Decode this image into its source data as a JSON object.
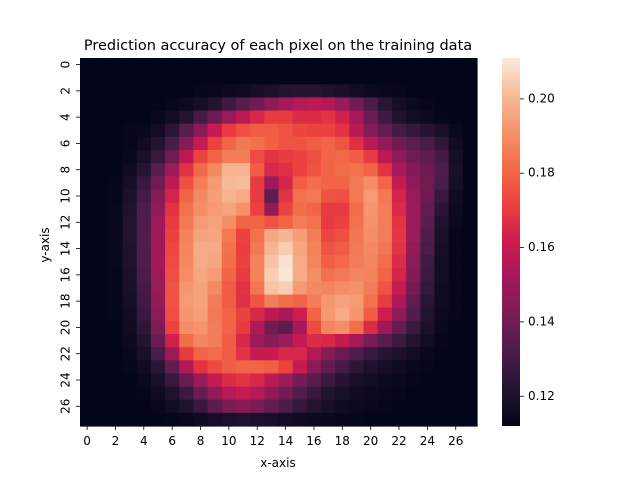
{
  "chart_data": {
    "type": "heatmap",
    "title": "Prediction accuracy of each pixel on the training data",
    "xlabel": "x-axis",
    "ylabel": "y-axis",
    "rows": 28,
    "cols": 28,
    "x_tick_labels": [
      "0",
      "2",
      "4",
      "6",
      "8",
      "10",
      "12",
      "14",
      "16",
      "18",
      "20",
      "22",
      "24",
      "26"
    ],
    "y_tick_labels": [
      "0",
      "2",
      "4",
      "6",
      "8",
      "10",
      "12",
      "14",
      "16",
      "18",
      "20",
      "22",
      "24",
      "26"
    ],
    "colorbar": {
      "vmin": 0.112,
      "vmax": 0.211,
      "tick_values": [
        0.12,
        0.14,
        0.16,
        0.18,
        0.2
      ],
      "tick_labels": [
        "0.12",
        "0.14",
        "0.16",
        "0.18",
        "0.20"
      ]
    },
    "colormap": [
      "#03051a",
      "#221331",
      "#4c1d4b",
      "#781c55",
      "#a3195b",
      "#cb1b4f",
      "#ec3f3f",
      "#f26a47",
      "#f5936a",
      "#f7ba98",
      "#faebdd"
    ],
    "grid": false,
    "legend": "colorbar-right",
    "values": [
      [
        0.112,
        0.112,
        0.112,
        0.112,
        0.112,
        0.112,
        0.112,
        0.112,
        0.112,
        0.112,
        0.112,
        0.112,
        0.112,
        0.112,
        0.112,
        0.112,
        0.112,
        0.112,
        0.112,
        0.112,
        0.112,
        0.112,
        0.112,
        0.112,
        0.112,
        0.112,
        0.112,
        0.112
      ],
      [
        0.112,
        0.112,
        0.112,
        0.112,
        0.112,
        0.112,
        0.112,
        0.112,
        0.112,
        0.112,
        0.112,
        0.112,
        0.112,
        0.112,
        0.112,
        0.112,
        0.112,
        0.112,
        0.112,
        0.112,
        0.112,
        0.112,
        0.112,
        0.112,
        0.112,
        0.112,
        0.112,
        0.112
      ],
      [
        0.112,
        0.112,
        0.112,
        0.112,
        0.112,
        0.112,
        0.112,
        0.112,
        0.113,
        0.114,
        0.115,
        0.116,
        0.118,
        0.12,
        0.122,
        0.123,
        0.123,
        0.121,
        0.119,
        0.117,
        0.115,
        0.114,
        0.113,
        0.112,
        0.112,
        0.112,
        0.112,
        0.112
      ],
      [
        0.112,
        0.112,
        0.112,
        0.112,
        0.112,
        0.112,
        0.113,
        0.115,
        0.118,
        0.122,
        0.128,
        0.134,
        0.14,
        0.147,
        0.152,
        0.156,
        0.158,
        0.155,
        0.149,
        0.14,
        0.131,
        0.124,
        0.118,
        0.115,
        0.113,
        0.112,
        0.112,
        0.112
      ],
      [
        0.112,
        0.112,
        0.112,
        0.112,
        0.112,
        0.114,
        0.117,
        0.122,
        0.13,
        0.139,
        0.149,
        0.158,
        0.165,
        0.17,
        0.17,
        0.166,
        0.166,
        0.168,
        0.163,
        0.152,
        0.139,
        0.129,
        0.121,
        0.117,
        0.115,
        0.113,
        0.112,
        0.112
      ],
      [
        0.112,
        0.112,
        0.112,
        0.113,
        0.114,
        0.117,
        0.124,
        0.134,
        0.146,
        0.16,
        0.17,
        0.175,
        0.178,
        0.178,
        0.176,
        0.173,
        0.172,
        0.172,
        0.168,
        0.157,
        0.145,
        0.137,
        0.13,
        0.126,
        0.123,
        0.119,
        0.114,
        0.112
      ],
      [
        0.112,
        0.112,
        0.112,
        0.113,
        0.116,
        0.122,
        0.131,
        0.145,
        0.16,
        0.172,
        0.18,
        0.185,
        0.183,
        0.179,
        0.176,
        0.176,
        0.178,
        0.18,
        0.176,
        0.167,
        0.157,
        0.148,
        0.14,
        0.135,
        0.131,
        0.125,
        0.116,
        0.112
      ],
      [
        0.112,
        0.112,
        0.112,
        0.114,
        0.119,
        0.127,
        0.14,
        0.158,
        0.172,
        0.18,
        0.186,
        0.186,
        0.174,
        0.168,
        0.17,
        0.172,
        0.175,
        0.18,
        0.181,
        0.178,
        0.17,
        0.158,
        0.147,
        0.14,
        0.136,
        0.13,
        0.118,
        0.112
      ],
      [
        0.112,
        0.112,
        0.112,
        0.116,
        0.123,
        0.134,
        0.15,
        0.168,
        0.181,
        0.189,
        0.199,
        0.199,
        0.178,
        0.165,
        0.167,
        0.172,
        0.176,
        0.18,
        0.182,
        0.183,
        0.18,
        0.168,
        0.153,
        0.144,
        0.139,
        0.132,
        0.119,
        0.112
      ],
      [
        0.112,
        0.112,
        0.113,
        0.118,
        0.127,
        0.14,
        0.158,
        0.175,
        0.186,
        0.193,
        0.201,
        0.202,
        0.17,
        0.15,
        0.164,
        0.178,
        0.182,
        0.18,
        0.18,
        0.185,
        0.19,
        0.18,
        0.16,
        0.147,
        0.14,
        0.131,
        0.118,
        0.112
      ],
      [
        0.112,
        0.112,
        0.113,
        0.12,
        0.13,
        0.145,
        0.164,
        0.18,
        0.189,
        0.194,
        0.199,
        0.197,
        0.17,
        0.135,
        0.168,
        0.183,
        0.185,
        0.176,
        0.175,
        0.185,
        0.193,
        0.185,
        0.164,
        0.149,
        0.139,
        0.127,
        0.116,
        0.112
      ],
      [
        0.112,
        0.112,
        0.114,
        0.121,
        0.132,
        0.148,
        0.168,
        0.183,
        0.19,
        0.193,
        0.195,
        0.191,
        0.172,
        0.148,
        0.172,
        0.182,
        0.18,
        0.17,
        0.17,
        0.182,
        0.192,
        0.186,
        0.166,
        0.15,
        0.137,
        0.124,
        0.115,
        0.112
      ],
      [
        0.112,
        0.112,
        0.114,
        0.122,
        0.133,
        0.15,
        0.17,
        0.185,
        0.193,
        0.195,
        0.19,
        0.18,
        0.18,
        0.176,
        0.18,
        0.186,
        0.183,
        0.17,
        0.172,
        0.183,
        0.191,
        0.186,
        0.168,
        0.15,
        0.135,
        0.121,
        0.114,
        0.112
      ],
      [
        0.112,
        0.112,
        0.114,
        0.122,
        0.133,
        0.151,
        0.172,
        0.187,
        0.195,
        0.196,
        0.185,
        0.172,
        0.183,
        0.196,
        0.2,
        0.194,
        0.186,
        0.173,
        0.175,
        0.184,
        0.19,
        0.186,
        0.169,
        0.15,
        0.133,
        0.119,
        0.113,
        0.112
      ],
      [
        0.112,
        0.112,
        0.114,
        0.121,
        0.132,
        0.151,
        0.173,
        0.188,
        0.197,
        0.197,
        0.183,
        0.171,
        0.185,
        0.2,
        0.205,
        0.196,
        0.187,
        0.176,
        0.178,
        0.185,
        0.189,
        0.184,
        0.168,
        0.148,
        0.131,
        0.118,
        0.113,
        0.112
      ],
      [
        0.112,
        0.112,
        0.114,
        0.121,
        0.132,
        0.151,
        0.174,
        0.189,
        0.197,
        0.196,
        0.182,
        0.172,
        0.187,
        0.203,
        0.209,
        0.197,
        0.188,
        0.179,
        0.181,
        0.186,
        0.188,
        0.182,
        0.166,
        0.146,
        0.129,
        0.117,
        0.113,
        0.112
      ],
      [
        0.112,
        0.112,
        0.113,
        0.12,
        0.131,
        0.15,
        0.175,
        0.19,
        0.196,
        0.193,
        0.18,
        0.17,
        0.187,
        0.205,
        0.21,
        0.197,
        0.19,
        0.183,
        0.185,
        0.188,
        0.187,
        0.18,
        0.164,
        0.144,
        0.128,
        0.117,
        0.113,
        0.112
      ],
      [
        0.112,
        0.112,
        0.113,
        0.119,
        0.13,
        0.149,
        0.176,
        0.192,
        0.195,
        0.189,
        0.178,
        0.168,
        0.184,
        0.203,
        0.205,
        0.193,
        0.189,
        0.188,
        0.19,
        0.191,
        0.186,
        0.176,
        0.16,
        0.141,
        0.126,
        0.116,
        0.113,
        0.112
      ],
      [
        0.112,
        0.112,
        0.113,
        0.118,
        0.129,
        0.148,
        0.176,
        0.193,
        0.195,
        0.186,
        0.178,
        0.167,
        0.176,
        0.186,
        0.182,
        0.18,
        0.186,
        0.192,
        0.195,
        0.193,
        0.183,
        0.17,
        0.154,
        0.137,
        0.124,
        0.116,
        0.113,
        0.112
      ],
      [
        0.112,
        0.112,
        0.113,
        0.117,
        0.127,
        0.146,
        0.175,
        0.192,
        0.194,
        0.185,
        0.18,
        0.172,
        0.165,
        0.158,
        0.153,
        0.162,
        0.18,
        0.193,
        0.197,
        0.192,
        0.178,
        0.162,
        0.147,
        0.133,
        0.122,
        0.115,
        0.113,
        0.112
      ],
      [
        0.112,
        0.112,
        0.112,
        0.116,
        0.125,
        0.143,
        0.172,
        0.19,
        0.192,
        0.186,
        0.18,
        0.17,
        0.155,
        0.14,
        0.135,
        0.152,
        0.174,
        0.188,
        0.19,
        0.182,
        0.166,
        0.15,
        0.138,
        0.128,
        0.12,
        0.114,
        0.112,
        0.112
      ],
      [
        0.112,
        0.112,
        0.112,
        0.115,
        0.122,
        0.138,
        0.163,
        0.182,
        0.188,
        0.186,
        0.178,
        0.165,
        0.15,
        0.145,
        0.15,
        0.16,
        0.166,
        0.165,
        0.16,
        0.152,
        0.142,
        0.134,
        0.128,
        0.122,
        0.117,
        0.113,
        0.112,
        0.112
      ],
      [
        0.112,
        0.112,
        0.112,
        0.114,
        0.119,
        0.131,
        0.15,
        0.17,
        0.18,
        0.182,
        0.178,
        0.168,
        0.16,
        0.16,
        0.165,
        0.165,
        0.155,
        0.145,
        0.138,
        0.132,
        0.127,
        0.123,
        0.12,
        0.117,
        0.114,
        0.112,
        0.112,
        0.112
      ],
      [
        0.112,
        0.112,
        0.112,
        0.113,
        0.116,
        0.124,
        0.137,
        0.155,
        0.168,
        0.174,
        0.178,
        0.18,
        0.18,
        0.178,
        0.172,
        0.16,
        0.146,
        0.137,
        0.13,
        0.125,
        0.121,
        0.118,
        0.116,
        0.114,
        0.113,
        0.112,
        0.112,
        0.112
      ],
      [
        0.112,
        0.112,
        0.112,
        0.112,
        0.114,
        0.119,
        0.127,
        0.138,
        0.15,
        0.16,
        0.166,
        0.168,
        0.165,
        0.158,
        0.15,
        0.141,
        0.134,
        0.128,
        0.123,
        0.119,
        0.117,
        0.115,
        0.114,
        0.113,
        0.112,
        0.112,
        0.112,
        0.112
      ],
      [
        0.112,
        0.112,
        0.112,
        0.112,
        0.113,
        0.116,
        0.121,
        0.128,
        0.138,
        0.148,
        0.156,
        0.16,
        0.156,
        0.148,
        0.14,
        0.133,
        0.127,
        0.122,
        0.119,
        0.116,
        0.115,
        0.114,
        0.113,
        0.112,
        0.112,
        0.112,
        0.112,
        0.112
      ],
      [
        0.112,
        0.112,
        0.112,
        0.112,
        0.112,
        0.114,
        0.117,
        0.121,
        0.127,
        0.135,
        0.142,
        0.145,
        0.142,
        0.137,
        0.131,
        0.126,
        0.122,
        0.119,
        0.116,
        0.115,
        0.114,
        0.113,
        0.112,
        0.112,
        0.112,
        0.112,
        0.112,
        0.112
      ],
      [
        0.112,
        0.112,
        0.112,
        0.112,
        0.112,
        0.112,
        0.113,
        0.114,
        0.116,
        0.118,
        0.12,
        0.121,
        0.12,
        0.119,
        0.117,
        0.116,
        0.115,
        0.114,
        0.113,
        0.113,
        0.112,
        0.112,
        0.112,
        0.112,
        0.112,
        0.112,
        0.112,
        0.112
      ]
    ]
  }
}
